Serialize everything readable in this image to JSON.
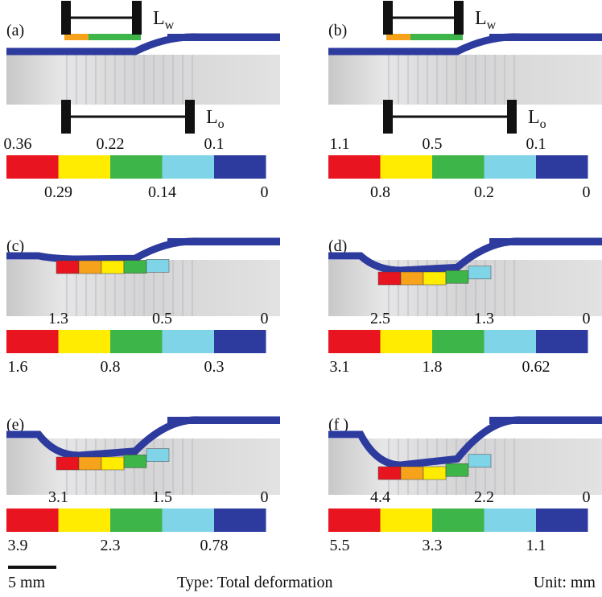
{
  "colorbar_colors": [
    "#e8141f",
    "#ffec00",
    "#3db549",
    "#80d4e8",
    "#2d3a9e"
  ],
  "panels": [
    {
      "label": "(a)",
      "colorbar_labels": [
        "0.36",
        "0.29",
        "0.22",
        "0.14",
        "0.1",
        "0"
      ],
      "length_labels": [
        {
          "text": "L",
          "subscript": "w"
        },
        {
          "text": "L",
          "subscript": "o"
        }
      ]
    },
    {
      "label": "(b)",
      "colorbar_labels": [
        "1.1",
        "0.8",
        "0.5",
        "0.2",
        "0.1",
        "0"
      ],
      "length_labels": [
        {
          "text": "L",
          "subscript": "w"
        },
        {
          "text": "L",
          "subscript": "o"
        }
      ]
    },
    {
      "label": "(c)",
      "colorbar_labels": [
        "1.6",
        "1.3",
        "0.8",
        "0.5",
        "0.3",
        "0"
      ]
    },
    {
      "label": "(d)",
      "colorbar_labels": [
        "3.1",
        "2.5",
        "1.8",
        "1.3",
        "0.62",
        "0"
      ]
    },
    {
      "label": "(e)",
      "colorbar_labels": [
        "3.9",
        "3.1",
        "2.3",
        "1.5",
        "0.78",
        "0"
      ]
    },
    {
      "label": "(f )",
      "colorbar_labels": [
        "5.5",
        "4.4",
        "3.3",
        "2.2",
        "1.1",
        "0"
      ]
    }
  ],
  "footer": {
    "scale_bar": "5 mm",
    "type": "Type: Total deformation",
    "unit": "Unit: mm"
  }
}
